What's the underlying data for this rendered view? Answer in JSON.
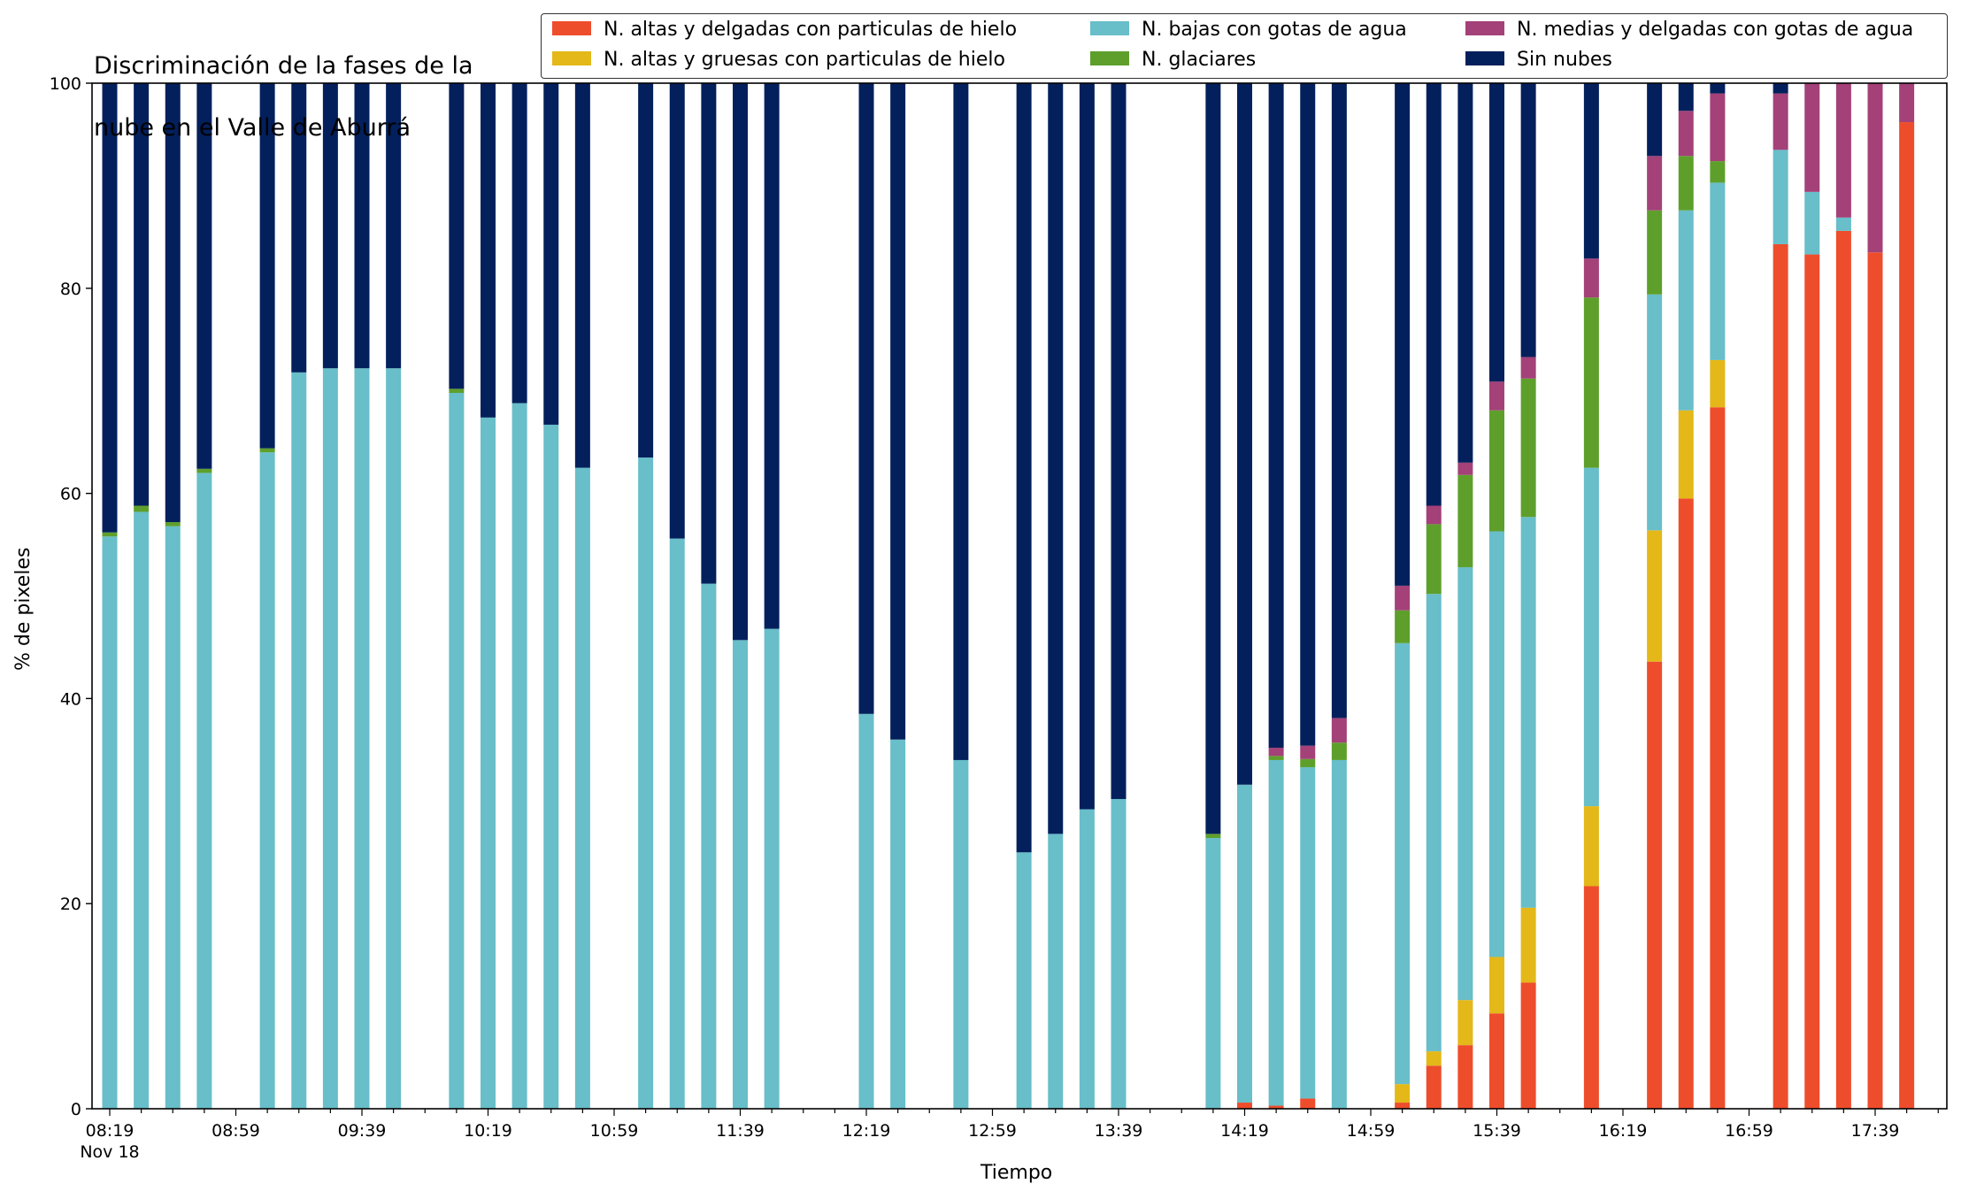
{
  "title_lines": [
    "Discriminación de la fases de la",
    "nube en el Valle de Aburrá"
  ],
  "chart_data": {
    "type": "bar",
    "stacked": true,
    "title": "Discriminación de la fases de la nube en el Valle de Aburrá",
    "xlabel": "Tiempo",
    "ylabel": "% de pixeles",
    "ylim": [
      0,
      100
    ],
    "y_ticks": [
      0,
      20,
      40,
      60,
      80,
      100
    ],
    "x_tick_labels": [
      "08:19",
      "08:59",
      "09:39",
      "10:19",
      "10:59",
      "11:39",
      "12:19",
      "12:59",
      "13:39",
      "14:19",
      "14:59",
      "15:39",
      "16:19",
      "16:59",
      "17:39"
    ],
    "x_tick_sublabel": "Nov 18",
    "legend_position": "top",
    "series": [
      {
        "name": "N. altas y delgadas con particulas de hielo",
        "color": "#ee4d2c"
      },
      {
        "name": "N. altas y gruesas con particulas de hielo",
        "color": "#e4b818"
      },
      {
        "name": "N. bajas con gotas de agua",
        "color": "#68bec9"
      },
      {
        "name": "N. glaciares",
        "color": "#5e9f2c"
      },
      {
        "name": "N. medias y delgadas con gotas de agua",
        "color": "#a34178"
      },
      {
        "name": "Sin nubes",
        "color": "#03205c"
      }
    ],
    "bars": [
      {
        "time": "08:19",
        "values": [
          0,
          0,
          55.8,
          0.4,
          0,
          43.8
        ]
      },
      {
        "time": "08:29",
        "values": [
          0,
          0,
          58.2,
          0.6,
          0,
          41.2
        ]
      },
      {
        "time": "08:39",
        "values": [
          0,
          0,
          56.8,
          0.4,
          0,
          42.8
        ]
      },
      {
        "time": "08:49",
        "values": [
          0,
          0,
          62.0,
          0.4,
          0,
          37.6
        ]
      },
      {
        "time": "09:09",
        "values": [
          0,
          0,
          64.0,
          0.4,
          0,
          35.6
        ]
      },
      {
        "time": "09:19",
        "values": [
          0,
          0,
          71.8,
          0,
          0,
          28.2
        ]
      },
      {
        "time": "09:29",
        "values": [
          0,
          0,
          72.2,
          0,
          0,
          27.8
        ]
      },
      {
        "time": "09:39",
        "values": [
          0,
          0,
          72.2,
          0,
          0,
          27.8
        ]
      },
      {
        "time": "09:49",
        "values": [
          0,
          0,
          72.2,
          0,
          0,
          27.8
        ]
      },
      {
        "time": "10:09",
        "values": [
          0,
          0,
          69.8,
          0.4,
          0,
          29.8
        ]
      },
      {
        "time": "10:19",
        "values": [
          0,
          0,
          67.4,
          0,
          0,
          32.6
        ]
      },
      {
        "time": "10:29",
        "values": [
          0,
          0,
          68.8,
          0,
          0,
          31.2
        ]
      },
      {
        "time": "10:39",
        "values": [
          0,
          0,
          66.7,
          0,
          0,
          33.3
        ]
      },
      {
        "time": "10:49",
        "values": [
          0,
          0,
          62.5,
          0,
          0,
          37.5
        ]
      },
      {
        "time": "11:09",
        "values": [
          0,
          0,
          63.5,
          0,
          0,
          36.5
        ]
      },
      {
        "time": "11:19",
        "values": [
          0,
          0,
          55.6,
          0,
          0,
          44.4
        ]
      },
      {
        "time": "11:29",
        "values": [
          0,
          0,
          51.2,
          0,
          0,
          48.8
        ]
      },
      {
        "time": "11:39",
        "values": [
          0,
          0,
          45.7,
          0,
          0,
          54.3
        ]
      },
      {
        "time": "11:49",
        "values": [
          0,
          0,
          46.8,
          0,
          0,
          53.2
        ]
      },
      {
        "time": "12:19",
        "values": [
          0,
          0,
          38.5,
          0,
          0,
          61.5
        ]
      },
      {
        "time": "12:29",
        "values": [
          0,
          0,
          36.0,
          0,
          0,
          64.0
        ]
      },
      {
        "time": "12:49",
        "values": [
          0,
          0,
          34.0,
          0,
          0,
          66.0
        ]
      },
      {
        "time": "13:09",
        "values": [
          0,
          0,
          25.0,
          0,
          0,
          75.0
        ]
      },
      {
        "time": "13:19",
        "values": [
          0,
          0,
          26.8,
          0,
          0,
          73.2
        ]
      },
      {
        "time": "13:29",
        "values": [
          0,
          0,
          29.2,
          0,
          0,
          70.8
        ]
      },
      {
        "time": "13:39",
        "values": [
          0,
          0,
          30.2,
          0,
          0,
          69.8
        ]
      },
      {
        "time": "14:09",
        "values": [
          0,
          0,
          26.4,
          0.4,
          0,
          73.2
        ]
      },
      {
        "time": "14:19",
        "values": [
          0.6,
          0,
          31.0,
          0,
          0,
          68.4
        ]
      },
      {
        "time": "14:29",
        "values": [
          0.3,
          0,
          33.7,
          0.4,
          0.8,
          64.8
        ]
      },
      {
        "time": "14:39",
        "values": [
          1.0,
          0,
          32.3,
          0.8,
          1.3,
          64.6
        ]
      },
      {
        "time": "14:49",
        "values": [
          0,
          0,
          34.0,
          1.7,
          2.4,
          61.9
        ]
      },
      {
        "time": "15:09",
        "values": [
          0.6,
          1.8,
          43.0,
          3.2,
          2.4,
          49.0
        ]
      },
      {
        "time": "15:19",
        "values": [
          4.2,
          1.4,
          44.6,
          6.8,
          1.8,
          41.2
        ]
      },
      {
        "time": "15:29",
        "values": [
          6.2,
          4.4,
          42.2,
          9.0,
          1.2,
          37.0
        ]
      },
      {
        "time": "15:39",
        "values": [
          9.3,
          5.5,
          41.5,
          11.8,
          2.8,
          29.1
        ]
      },
      {
        "time": "15:49",
        "values": [
          12.3,
          7.3,
          38.1,
          13.5,
          2.1,
          26.7
        ]
      },
      {
        "time": "16:09",
        "values": [
          21.7,
          7.8,
          33.0,
          16.6,
          3.8,
          17.1
        ]
      },
      {
        "time": "16:29",
        "values": [
          43.6,
          12.8,
          23.0,
          8.2,
          5.3,
          7.1
        ]
      },
      {
        "time": "16:39",
        "values": [
          59.5,
          8.6,
          19.5,
          5.3,
          4.4,
          2.7
        ]
      },
      {
        "time": "16:49",
        "values": [
          68.4,
          4.6,
          17.3,
          2.1,
          6.6,
          1.0
        ]
      },
      {
        "time": "17:09",
        "values": [
          84.3,
          0,
          9.2,
          0,
          5.5,
          1.0
        ]
      },
      {
        "time": "17:19",
        "values": [
          83.3,
          0,
          6.1,
          0,
          10.6,
          0
        ]
      },
      {
        "time": "17:29",
        "values": [
          85.6,
          0,
          1.3,
          0,
          13.1,
          0
        ]
      },
      {
        "time": "17:39",
        "values": [
          83.5,
          0,
          0,
          0,
          16.5,
          0
        ]
      },
      {
        "time": "17:49",
        "values": [
          96.2,
          0,
          0,
          0,
          3.8,
          0
        ]
      }
    ]
  }
}
